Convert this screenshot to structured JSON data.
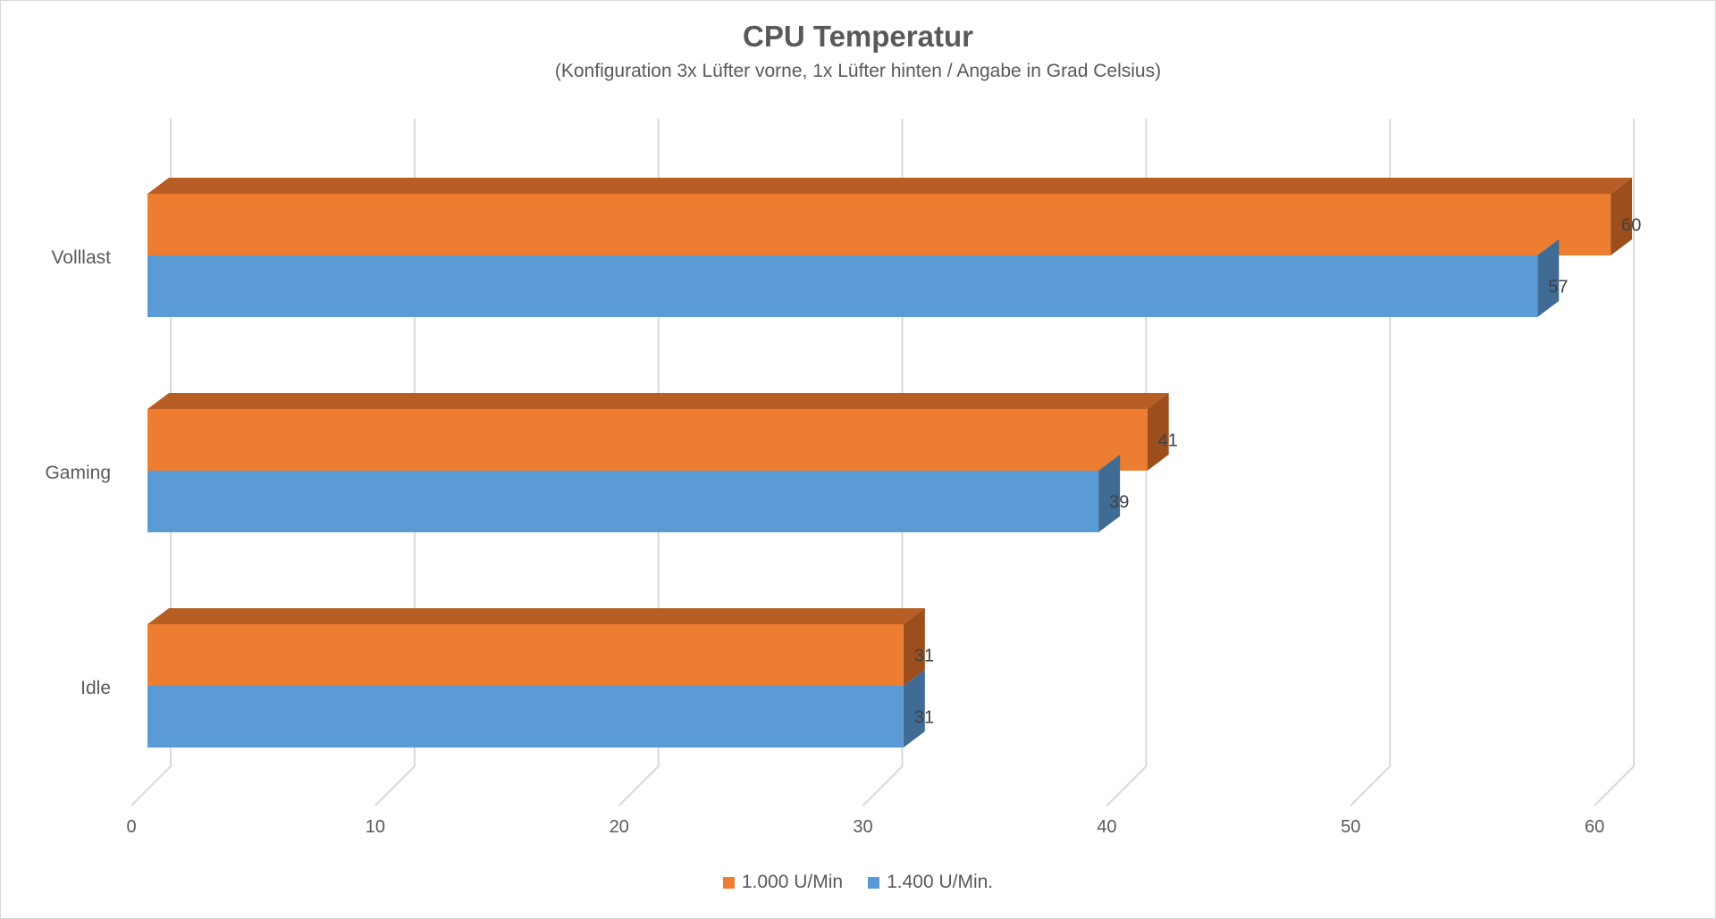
{
  "chart_data": {
    "type": "bar",
    "orientation": "horizontal",
    "style": "3d",
    "title": "CPU Temperatur",
    "subtitle": "(Konfiguration 3x Lüfter vorne, 1x Lüfter hinten / Angabe in Grad Celsius)",
    "categories": [
      "Volllast",
      "Gaming",
      "Idle"
    ],
    "series": [
      {
        "name": "1.000 U/Min",
        "values": [
          60,
          41,
          31
        ],
        "color": "#ED7D31",
        "top_color": "#B65E24",
        "side_color": "#9C4F1C"
      },
      {
        "name": "1.400 U/Min.",
        "values": [
          57,
          39,
          31
        ],
        "color": "#5B9BD5",
        "top_color": "#4A7FB0",
        "side_color": "#3F6B94"
      }
    ],
    "xaxis": {
      "ticks": [
        "0",
        "10",
        "20",
        "30",
        "40",
        "50",
        "60"
      ],
      "min": 0,
      "max": 60
    },
    "grid": true,
    "legend_position": "bottom",
    "gridline_color": "#d9d9d9"
  }
}
